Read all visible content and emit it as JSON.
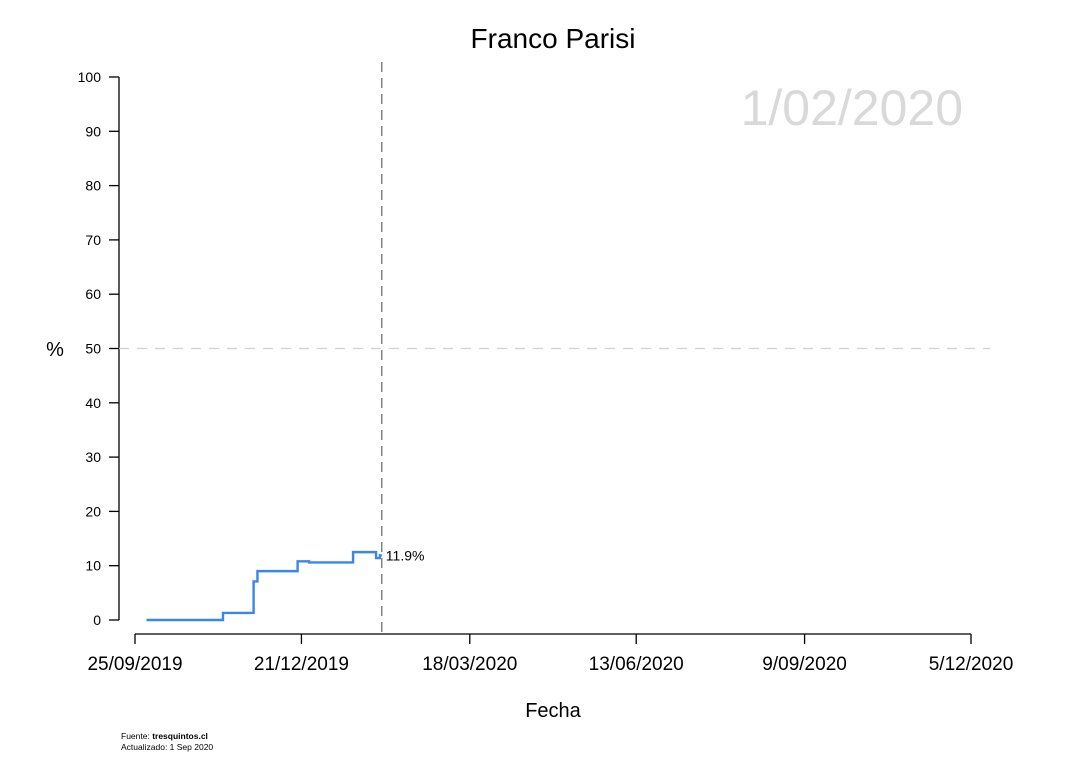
{
  "chart_data": {
    "type": "line",
    "title": "Franco Parisi",
    "watermark_date": "1/02/2020",
    "xlabel": "Fecha",
    "ylabel": "%",
    "ylim": [
      0,
      100
    ],
    "yticks": [
      "0",
      "10",
      "20",
      "30",
      "40",
      "50",
      "60",
      "70",
      "80",
      "90",
      "100"
    ],
    "xlim": [
      "2019-09-25",
      "2020-12-05"
    ],
    "xticks": [
      {
        "date": "2019-09-25",
        "label": "25/09/2019"
      },
      {
        "date": "2019-12-21",
        "label": "21/12/2019"
      },
      {
        "date": "2020-03-18",
        "label": "18/03/2020"
      },
      {
        "date": "2020-06-13",
        "label": "13/06/2020"
      },
      {
        "date": "2020-09-09",
        "label": "9/09/2020"
      },
      {
        "date": "2020-12-05",
        "label": "5/12/2020"
      }
    ],
    "reference_line_y": 50,
    "current_date_line": "2020-02-01",
    "grid": false,
    "series": [
      {
        "color": "#3a87e6",
        "step": true,
        "points": [
          {
            "date": "2019-10-01",
            "value": 0
          },
          {
            "date": "2019-11-10",
            "value": 1.3
          },
          {
            "date": "2019-11-26",
            "value": 7.1
          },
          {
            "date": "2019-11-28",
            "value": 9.0
          },
          {
            "date": "2019-12-19",
            "value": 10.8
          },
          {
            "date": "2019-12-25",
            "value": 10.6
          },
          {
            "date": "2020-01-17",
            "value": 12.5
          },
          {
            "date": "2020-01-29",
            "value": 11.4
          },
          {
            "date": "2020-01-31",
            "value": 11.9
          },
          {
            "date": "2020-02-01",
            "value": 11.9
          }
        ],
        "end_label": "11.9%"
      }
    ]
  },
  "footer": {
    "source_prefix": "Fuente: ",
    "source_site": "tresquintos.cl",
    "updated": "Actualizado: 1 Sep 2020"
  }
}
